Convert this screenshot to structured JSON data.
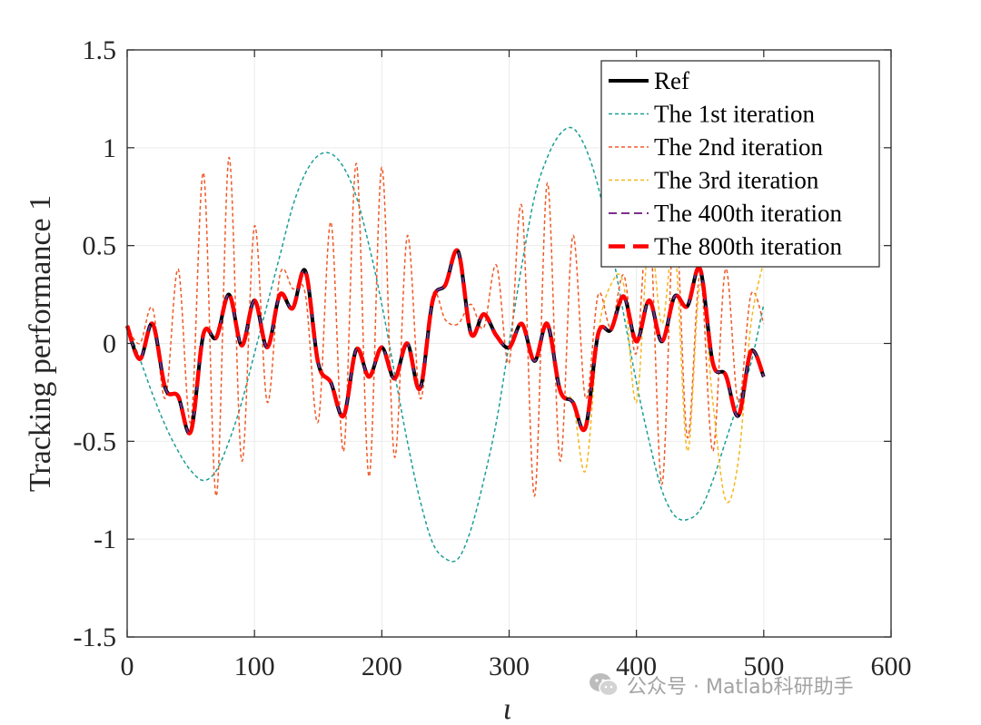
{
  "chart_data": {
    "type": "line",
    "title": "",
    "xlabel": "ι",
    "ylabel": "Tracking performance 1",
    "xlim": [
      0,
      600
    ],
    "ylim": [
      -1.5,
      1.5
    ],
    "xticks": [
      0,
      100,
      200,
      300,
      400,
      500,
      600
    ],
    "xtick_labels": [
      "0",
      "100",
      "200",
      "300",
      "400",
      "500",
      "600"
    ],
    "yticks": [
      -1.5,
      -1,
      -0.5,
      0,
      0.5,
      1,
      1.5
    ],
    "ytick_labels": [
      "-1.5",
      "-1",
      "-0.5",
      "0",
      "0.5",
      "1",
      "1.5"
    ],
    "grid": true,
    "legend_position": "top-right",
    "x": [
      0,
      10,
      20,
      30,
      40,
      50,
      60,
      70,
      80,
      90,
      100,
      110,
      120,
      130,
      140,
      150,
      160,
      170,
      180,
      190,
      200,
      210,
      220,
      230,
      240,
      250,
      260,
      270,
      280,
      290,
      300,
      310,
      320,
      330,
      340,
      350,
      360,
      370,
      380,
      390,
      400,
      410,
      420,
      430,
      440,
      450,
      460,
      470,
      480,
      490,
      500
    ],
    "series": [
      {
        "name": "Ref",
        "color": "#000000",
        "dash": "solid",
        "width": 4,
        "values": [
          0.09,
          -0.08,
          0.1,
          -0.23,
          -0.27,
          -0.45,
          0.05,
          0.03,
          0.25,
          -0.01,
          0.22,
          -0.02,
          0.25,
          0.18,
          0.37,
          -0.1,
          -0.2,
          -0.37,
          -0.03,
          -0.17,
          -0.02,
          -0.18,
          0.0,
          -0.23,
          0.22,
          0.3,
          0.47,
          0.05,
          0.15,
          0.04,
          -0.02,
          0.1,
          -0.09,
          0.1,
          -0.24,
          -0.3,
          -0.43,
          0.05,
          0.07,
          0.24,
          0.01,
          0.22,
          0.01,
          0.24,
          0.19,
          0.38,
          -0.1,
          -0.16,
          -0.37,
          -0.04,
          -0.17
        ]
      },
      {
        "name": "The 1st iteration",
        "color": "#1a9e96",
        "dash": "short-dash",
        "width": 1.5,
        "values": [
          0.09,
          -0.08,
          -0.26,
          -0.42,
          -0.55,
          -0.65,
          -0.7,
          -0.65,
          -0.5,
          -0.3,
          -0.05,
          0.2,
          0.45,
          0.7,
          0.87,
          0.96,
          0.97,
          0.9,
          0.75,
          0.5,
          0.2,
          -0.15,
          -0.5,
          -0.8,
          -1.02,
          -1.1,
          -1.1,
          -0.95,
          -0.7,
          -0.4,
          0.0,
          0.4,
          0.75,
          0.95,
          1.07,
          1.1,
          1.0,
          0.8,
          0.5,
          0.15,
          -0.2,
          -0.5,
          -0.75,
          -0.88,
          -0.9,
          -0.85,
          -0.7,
          -0.5,
          -0.3,
          -0.1,
          0.2
        ]
      },
      {
        "name": "The 2nd iteration",
        "color": "#f05a28",
        "dash": "short-dash",
        "width": 1.5,
        "values": [
          0.09,
          0.0,
          0.18,
          -0.28,
          0.38,
          -0.4,
          0.87,
          -0.78,
          0.95,
          -0.6,
          0.6,
          -0.3,
          0.35,
          0.28,
          0.25,
          -0.4,
          0.62,
          -0.55,
          0.92,
          -0.68,
          0.9,
          -0.58,
          0.55,
          -0.28,
          0.25,
          0.12,
          0.1,
          0.2,
          0.08,
          0.4,
          -0.1,
          0.7,
          -0.78,
          0.82,
          -0.6,
          0.55,
          -0.28,
          0.25,
          0.08,
          0.35,
          -0.05,
          0.65,
          -0.72,
          0.68,
          -0.48,
          0.35,
          -0.55,
          0.38,
          -0.3,
          0.25,
          0.1
        ]
      },
      {
        "name": "The 3rd iteration",
        "color": "#f4b71c",
        "dash": "short-dash",
        "width": 1.5,
        "values": [
          0.09,
          -0.08,
          0.1,
          -0.23,
          -0.27,
          -0.45,
          0.05,
          0.03,
          0.25,
          -0.01,
          0.22,
          -0.02,
          0.25,
          0.18,
          0.37,
          -0.1,
          -0.2,
          -0.37,
          -0.03,
          -0.17,
          -0.02,
          -0.18,
          0.0,
          -0.23,
          0.22,
          0.3,
          0.47,
          0.05,
          0.15,
          0.04,
          -0.02,
          0.1,
          -0.09,
          0.1,
          -0.24,
          -0.3,
          -0.65,
          0.05,
          0.3,
          0.3,
          -0.3,
          0.55,
          0.1,
          0.5,
          -0.55,
          0.3,
          -0.3,
          -0.8,
          -0.6,
          0.1,
          0.42
        ]
      },
      {
        "name": "The 400th iteration",
        "color": "#7e2f8e",
        "dash": "dash",
        "width": 2,
        "values": [
          0.09,
          -0.08,
          0.1,
          -0.23,
          -0.27,
          -0.45,
          0.05,
          0.03,
          0.25,
          -0.01,
          0.22,
          -0.02,
          0.25,
          0.18,
          0.37,
          -0.1,
          -0.2,
          -0.37,
          -0.03,
          -0.17,
          -0.02,
          -0.18,
          0.0,
          -0.23,
          0.22,
          0.3,
          0.47,
          0.05,
          0.15,
          0.04,
          -0.02,
          0.1,
          -0.09,
          0.1,
          -0.24,
          -0.3,
          -0.43,
          0.05,
          0.07,
          0.24,
          0.01,
          0.22,
          0.01,
          0.24,
          0.19,
          0.38,
          -0.1,
          -0.16,
          -0.37,
          -0.04,
          -0.17
        ]
      },
      {
        "name": "The 800th iteration",
        "color": "#ff0000",
        "dash": "long-dash",
        "width": 4.5,
        "values": [
          0.09,
          -0.08,
          0.1,
          -0.23,
          -0.27,
          -0.45,
          0.05,
          0.03,
          0.25,
          -0.01,
          0.22,
          -0.02,
          0.25,
          0.18,
          0.37,
          -0.1,
          -0.2,
          -0.37,
          -0.03,
          -0.17,
          -0.02,
          -0.18,
          0.0,
          -0.23,
          0.22,
          0.3,
          0.47,
          0.05,
          0.15,
          0.04,
          -0.02,
          0.1,
          -0.09,
          0.1,
          -0.24,
          -0.3,
          -0.43,
          0.05,
          0.07,
          0.24,
          0.01,
          0.22,
          0.01,
          0.24,
          0.19,
          0.38,
          -0.1,
          -0.16,
          -0.37,
          -0.04,
          -0.17
        ]
      }
    ],
    "legend_order": [
      "Ref",
      "The 1st iteration",
      "The 2nd iteration",
      "The 3rd iteration",
      "The 400th iteration",
      "The 800th iteration"
    ]
  },
  "watermark": {
    "text": "公众号 · Matlab科研助手",
    "logo": "wechat-icon"
  }
}
